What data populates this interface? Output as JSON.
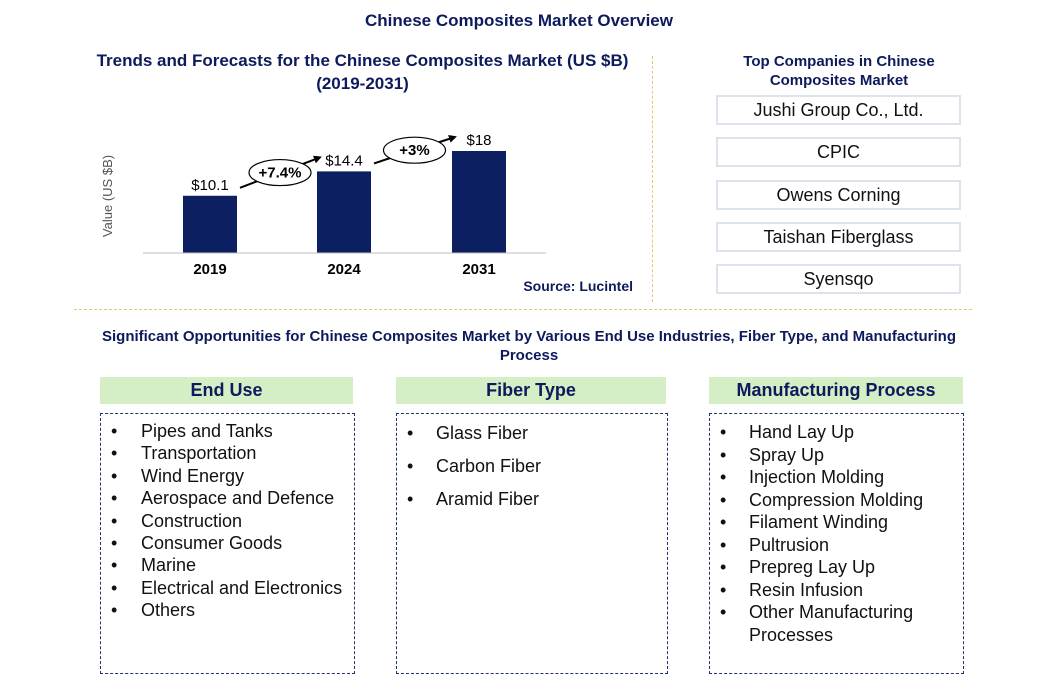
{
  "main_title": "Chinese Composites Market Overview",
  "chart_title": "Trends and Forecasts for the Chinese Composites Market (US $B) (2019-2031)",
  "source": "Source: Lucintel",
  "colors": {
    "bar": "#0c1f60",
    "category_header": "#d6eec6",
    "separator": "#e8c66a",
    "title": "#0d1a5c"
  },
  "chart_data": {
    "type": "bar",
    "categories": [
      "2019",
      "2024",
      "2031"
    ],
    "values": [
      10.1,
      14.4,
      18
    ],
    "value_labels": [
      "$10.1",
      "$14.4",
      "$18"
    ],
    "ylabel": "Value (US $B)",
    "xlabel": "",
    "ylim": [
      0,
      20
    ],
    "grid": false,
    "growth_annotations": [
      {
        "from": "2019",
        "to": "2024",
        "label": "+7.4%"
      },
      {
        "from": "2024",
        "to": "2031",
        "label": "+3%"
      }
    ]
  },
  "top_companies": {
    "title": "Top Companies in Chinese Composites Market",
    "items": [
      "Jushi Group Co., Ltd.",
      "CPIC",
      "Owens Corning",
      "Taishan Fiberglass",
      "Syensqo"
    ]
  },
  "opportunities": {
    "title": "Significant Opportunities for Chinese Composites Market by Various End Use Industries, Fiber Type, and Manufacturing Process",
    "bullet": "•",
    "end_use": {
      "title": "End Use",
      "items": [
        "Pipes and Tanks",
        "Transportation",
        "Wind Energy",
        "Aerospace and Defence",
        "Construction",
        "Consumer Goods",
        "Marine",
        "Electrical and Electronics",
        "Others"
      ]
    },
    "fiber_type": {
      "title": "Fiber Type",
      "items": [
        "Glass Fiber",
        "Carbon Fiber",
        "Aramid Fiber"
      ]
    },
    "manufacturing_process": {
      "title": "Manufacturing Process",
      "items": [
        "Hand Lay Up",
        "Spray Up",
        "Injection Molding",
        "Compression Molding",
        "Filament Winding",
        "Pultrusion",
        "Prepreg Lay Up",
        "Resin Infusion",
        "Other Manufacturing Processes"
      ]
    }
  }
}
